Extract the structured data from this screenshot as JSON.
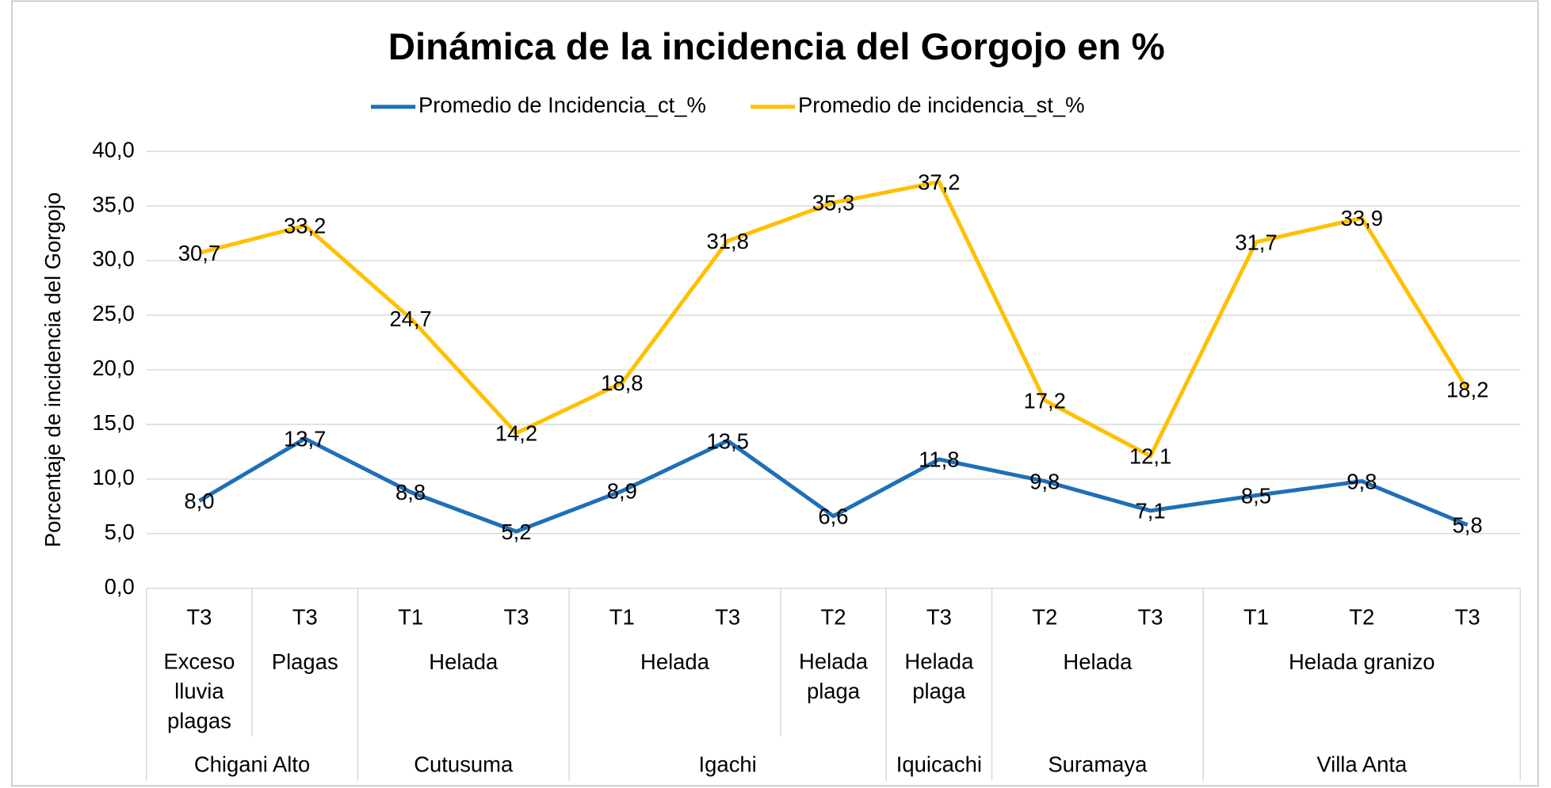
{
  "chart_data": {
    "type": "line",
    "title": "Dinámica de la incidencia del Gorgojo en %",
    "ylabel": "Porcentaje de incidencia del Gorgojo",
    "categories": [
      "T3",
      "T3",
      "T1",
      "T3",
      "T1",
      "T3",
      "T2",
      "T3",
      "T2",
      "T3",
      "T1",
      "T2",
      "T3"
    ],
    "category_groups": [
      "Exceso lluvia plagas",
      "Plagas",
      "Helada",
      "Helada",
      "Helada",
      "Helada",
      "Helada plaga",
      "Helada plaga",
      "Helada",
      "Helada",
      "Helada granizo",
      "Helada granizo",
      "Helada granizo"
    ],
    "category_supergroups": [
      "Chigani Alto",
      "Chigani Alto",
      "Cutusuma",
      "Cutusuma",
      "Igachi",
      "Igachi",
      "Igachi",
      "Iquicachi",
      "Suramaya",
      "Suramaya",
      "Villa Anta",
      "Villa Anta",
      "Villa Anta"
    ],
    "series": [
      {
        "name": "Promedio de Incidencia_ct_%",
        "color": "#1f6fb8",
        "values": [
          8.0,
          13.7,
          8.8,
          5.2,
          8.9,
          13.5,
          6.6,
          11.8,
          9.8,
          7.1,
          8.5,
          9.8,
          5.8
        ],
        "value_labels": [
          "8,0",
          "13,7",
          "8,8",
          "5,2",
          "8,9",
          "13,5",
          "6,6",
          "11,8",
          "9,8",
          "7,1",
          "8,5",
          "9,8",
          "5,8"
        ]
      },
      {
        "name": "Promedio de incidencia_st_%",
        "color": "#ffc000",
        "values": [
          30.7,
          33.2,
          24.7,
          14.2,
          18.8,
          31.8,
          35.3,
          37.2,
          17.2,
          12.1,
          31.7,
          33.9,
          18.2
        ],
        "value_labels": [
          "30,7",
          "33,2",
          "24,7",
          "14,2",
          "18,8",
          "31,8",
          "35,3",
          "37,2",
          "17,2",
          "12,1",
          "31,7",
          "33,9",
          "18,2"
        ]
      }
    ],
    "ylim": [
      0,
      40
    ],
    "yticks": [
      {
        "value": 0,
        "label": "0,0"
      },
      {
        "value": 5,
        "label": "5,0"
      },
      {
        "value": 10,
        "label": "10,0"
      },
      {
        "value": 15,
        "label": "15,0"
      },
      {
        "value": 20,
        "label": "20,0"
      },
      {
        "value": 25,
        "label": "25,0"
      },
      {
        "value": 30,
        "label": "30,0"
      },
      {
        "value": 35,
        "label": "35,0"
      },
      {
        "value": 40,
        "label": "40,0"
      }
    ],
    "grid": true,
    "legend": "top"
  }
}
